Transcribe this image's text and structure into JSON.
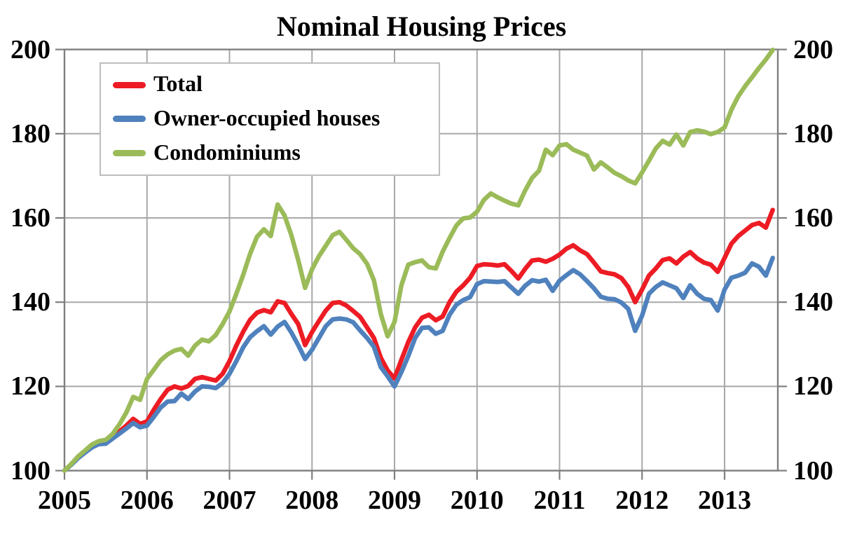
{
  "chart_data": {
    "type": "line",
    "title": "Nominal Housing Prices",
    "xlabel": "",
    "ylabel": "",
    "x_unit": "monthly, Jan 2005 - Aug 2013",
    "x_range": [
      2005.0,
      2013.646
    ],
    "ylim": [
      100,
      200
    ],
    "grid": true,
    "legend_position": "top-left",
    "frame_color": "#7f7f7f",
    "grid_color": "#a8a8a8",
    "x_ticks": [
      "2005",
      "2006",
      "2007",
      "2008",
      "2009",
      "2010",
      "2011",
      "2012",
      "2013"
    ],
    "x_tick_years": [
      2005,
      2006,
      2007,
      2008,
      2009,
      2010,
      2011,
      2012,
      2013
    ],
    "y_ticks": [
      100,
      120,
      140,
      160,
      180,
      200
    ],
    "y_tick_labels": [
      "100",
      "120",
      "140",
      "160",
      "180",
      "200"
    ],
    "series": [
      {
        "name": "Total",
        "color": "#ED1C24",
        "values": [
          100.0,
          101.5,
          103.2,
          104.5,
          105.8,
          106.5,
          106.7,
          108.0,
          109.3,
          110.7,
          112.3,
          111.1,
          111.7,
          114.5,
          117.0,
          119.2,
          120.0,
          119.5,
          120.1,
          121.8,
          122.2,
          121.8,
          121.4,
          123.0,
          126.0,
          129.7,
          133.0,
          135.8,
          137.5,
          138.1,
          137.6,
          140.2,
          139.8,
          137.2,
          134.8,
          129.8,
          132.9,
          135.5,
          138.0,
          139.8,
          140.0,
          139.2,
          137.9,
          136.5,
          134.0,
          131.5,
          126.8,
          123.8,
          121.9,
          126.3,
          130.5,
          134.0,
          136.3,
          137.0,
          135.7,
          136.6,
          140.0,
          142.5,
          144.0,
          145.8,
          148.6,
          149.0,
          148.9,
          148.7,
          149.0,
          147.4,
          145.6,
          147.9,
          149.9,
          150.1,
          149.6,
          150.3,
          151.3,
          152.7,
          153.5,
          152.3,
          151.4,
          149.4,
          147.3,
          146.9,
          146.6,
          145.7,
          143.6,
          140.0,
          143.0,
          146.3,
          148.0,
          150.0,
          150.4,
          149.2,
          150.8,
          151.9,
          150.4,
          149.4,
          148.9,
          147.2,
          150.5,
          153.9,
          155.7,
          157.0,
          158.3,
          158.8,
          157.7,
          161.9
        ]
      },
      {
        "name": "Owner-occupied houses",
        "color": "#4F81BD",
        "values": [
          100.0,
          101.4,
          103.0,
          104.3,
          105.5,
          106.3,
          106.4,
          107.6,
          108.8,
          110.0,
          111.3,
          110.3,
          110.7,
          112.8,
          115.0,
          116.4,
          116.5,
          118.3,
          117.0,
          118.8,
          120.0,
          119.9,
          119.6,
          120.8,
          123.0,
          126.0,
          129.3,
          131.7,
          133.1,
          134.3,
          132.3,
          134.2,
          135.3,
          132.8,
          129.8,
          126.5,
          128.7,
          131.5,
          134.3,
          135.9,
          136.1,
          135.9,
          135.2,
          133.3,
          131.5,
          129.4,
          124.6,
          122.4,
          120.0,
          123.4,
          127.2,
          131.5,
          133.9,
          134.0,
          132.5,
          133.2,
          137.0,
          139.4,
          140.5,
          141.2,
          144.3,
          145.0,
          144.9,
          144.8,
          145.0,
          143.5,
          142.0,
          143.9,
          145.2,
          144.9,
          145.3,
          142.7,
          145.1,
          146.4,
          147.6,
          146.6,
          145.0,
          143.3,
          141.3,
          140.8,
          140.7,
          139.9,
          138.4,
          133.2,
          136.8,
          142.0,
          143.6,
          144.7,
          144.0,
          143.3,
          141.0,
          144.0,
          142.0,
          140.8,
          140.5,
          138.0,
          143.0,
          145.8,
          146.3,
          147.0,
          149.2,
          148.4,
          146.3,
          150.5
        ]
      },
      {
        "name": "Condominiums",
        "color": "#9BBB59",
        "values": [
          100.0,
          101.6,
          103.4,
          104.8,
          106.2,
          107.0,
          107.3,
          108.7,
          111.0,
          113.8,
          117.5,
          116.8,
          121.8,
          124.0,
          126.2,
          127.6,
          128.5,
          128.9,
          127.3,
          129.7,
          131.1,
          130.7,
          132.2,
          134.8,
          137.8,
          142.0,
          146.5,
          151.5,
          155.5,
          157.3,
          155.7,
          163.2,
          160.6,
          155.9,
          150.0,
          143.4,
          147.8,
          150.9,
          153.4,
          155.9,
          156.7,
          154.8,
          152.8,
          151.4,
          149.1,
          145.2,
          137.2,
          131.9,
          135.3,
          144.0,
          148.9,
          149.5,
          149.9,
          148.3,
          148.0,
          152.0,
          155.2,
          158.2,
          159.9,
          160.1,
          161.5,
          164.3,
          165.8,
          164.9,
          164.1,
          163.4,
          163.0,
          166.5,
          169.5,
          171.2,
          176.2,
          174.9,
          177.2,
          177.5,
          176.2,
          175.5,
          174.8,
          171.5,
          173.2,
          172.0,
          170.7,
          169.9,
          168.9,
          168.2,
          170.8,
          173.6,
          176.5,
          178.3,
          177.4,
          179.8,
          177.2,
          180.4,
          180.8,
          180.5,
          179.9,
          180.4,
          181.5,
          185.7,
          188.9,
          191.3,
          193.4,
          195.6,
          197.6,
          199.9
        ]
      }
    ]
  }
}
